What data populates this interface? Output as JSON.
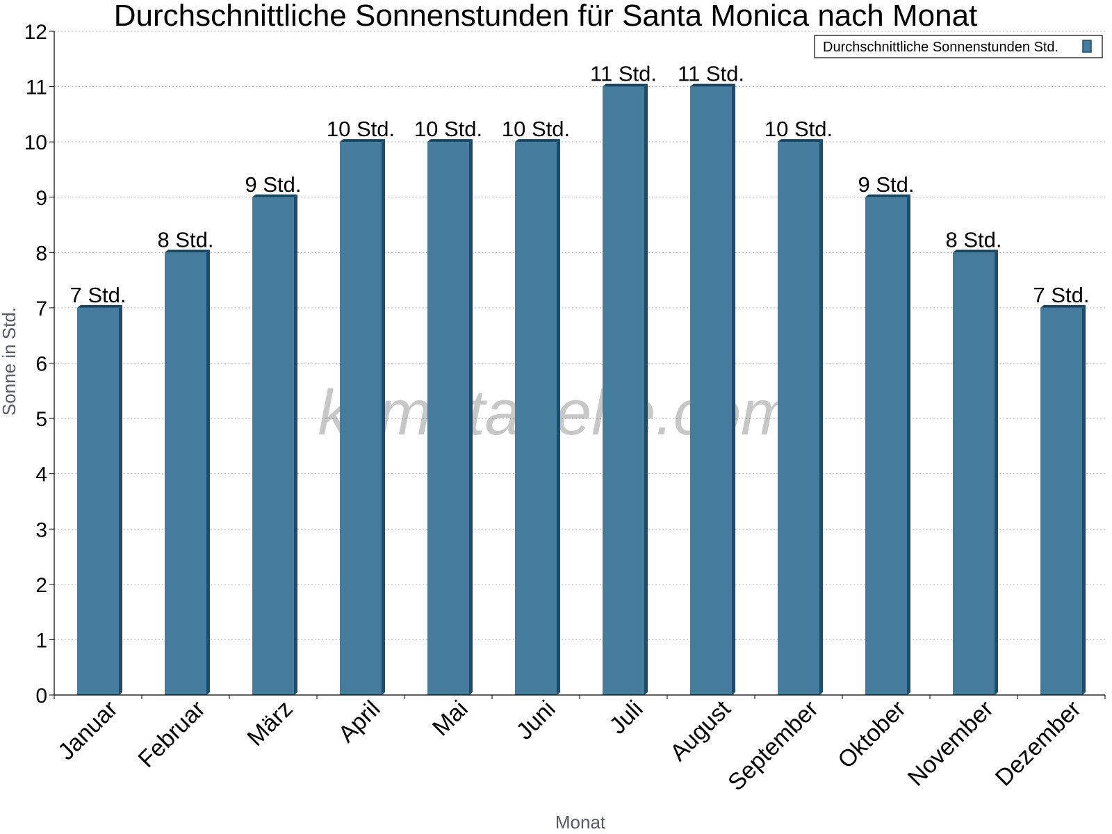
{
  "watermark": "klimatabelle.com",
  "chart_data": {
    "type": "bar",
    "title": "Durchschnittliche Sonnenstunden für Santa Monica nach Monat",
    "xlabel": "Monat",
    "ylabel": "Sonne in Std.",
    "ylim": [
      0,
      12
    ],
    "yticks": [
      0,
      1,
      2,
      3,
      4,
      5,
      6,
      7,
      8,
      9,
      10,
      11,
      12
    ],
    "grid": true,
    "legend_position": "top-right",
    "categories": [
      "Januar",
      "Februar",
      "März",
      "April",
      "Mai",
      "Juni",
      "Juli",
      "August",
      "September",
      "Oktober",
      "November",
      "Dezember"
    ],
    "series": [
      {
        "name": "Durchschnittliche Sonnenstunden Std.",
        "color": "#457b9d",
        "values": [
          7,
          8,
          9,
          10,
          10,
          10,
          11,
          11,
          10,
          9,
          8,
          7
        ],
        "data_labels": [
          "7 Std.",
          "8 Std.",
          "9 Std.",
          "10 Std.",
          "10 Std.",
          "10 Std.",
          "11 Std.",
          "11 Std.",
          "10 Std.",
          "9 Std.",
          "8 Std.",
          "7 Std."
        ]
      }
    ]
  }
}
